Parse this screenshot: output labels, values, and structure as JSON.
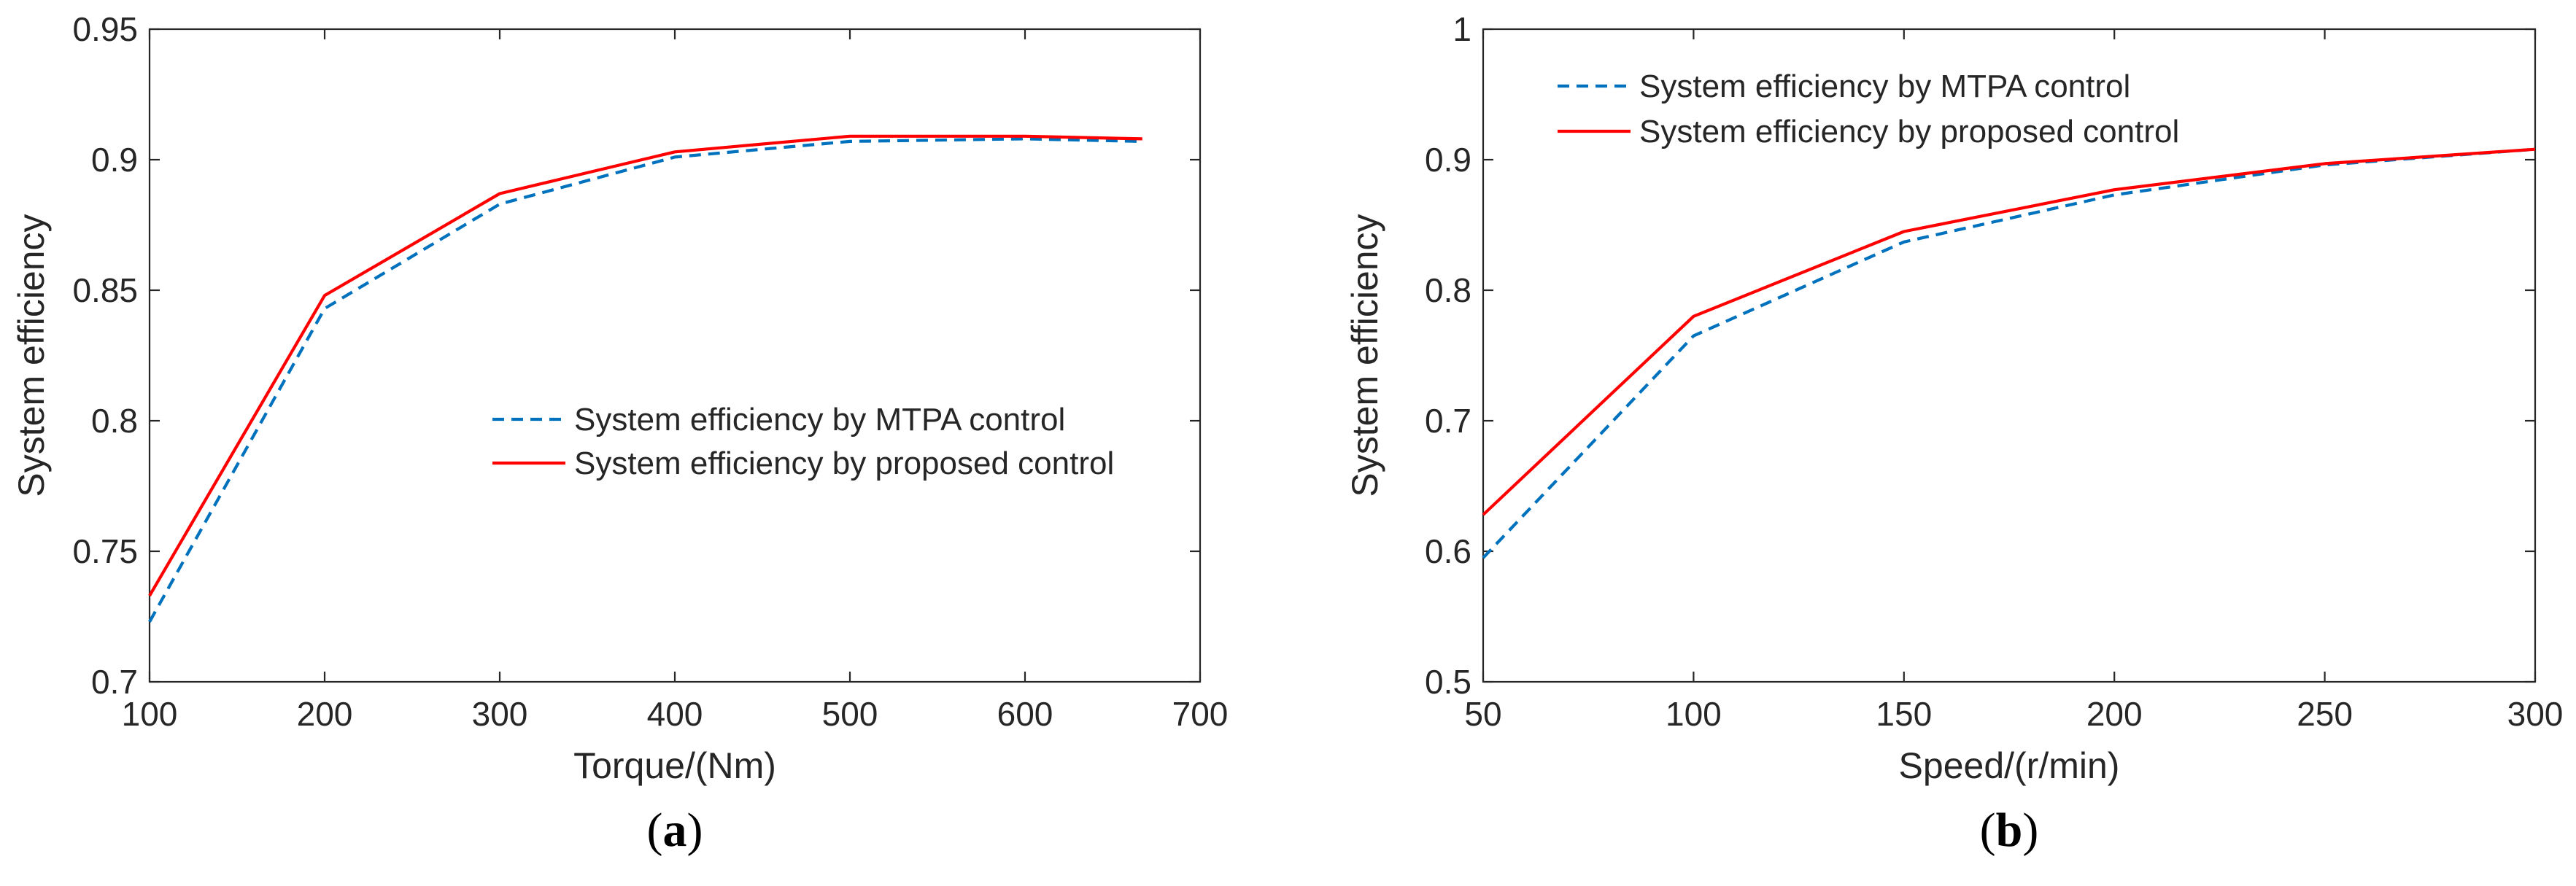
{
  "chart_data": [
    {
      "type": "line",
      "panel_label": "a",
      "xlabel": "Torque/(Nm)",
      "ylabel": "System efficiency",
      "xlim": [
        100,
        700
      ],
      "ylim": [
        0.7,
        0.95
      ],
      "xticks": [
        100,
        200,
        300,
        400,
        500,
        600,
        700
      ],
      "yticks": [
        0.7,
        0.75,
        0.8,
        0.85,
        0.9,
        0.95
      ],
      "xtick_labels": [
        "100",
        "200",
        "300",
        "400",
        "500",
        "600",
        "700"
      ],
      "ytick_labels": [
        "0.7",
        "0.75",
        "0.8",
        "0.85",
        "0.9",
        "0.95"
      ],
      "legend_position": "center-right",
      "series": [
        {
          "name": "System efficiency by MTPA control",
          "style": "dashed",
          "color": "#0072bd",
          "x": [
            100,
            200,
            300,
            400,
            500,
            600,
            667
          ],
          "y": [
            0.723,
            0.843,
            0.883,
            0.901,
            0.907,
            0.908,
            0.907
          ]
        },
        {
          "name": "System efficiency by proposed control",
          "style": "solid",
          "color": "#ff0000",
          "x": [
            100,
            200,
            300,
            400,
            500,
            600,
            667
          ],
          "y": [
            0.733,
            0.848,
            0.887,
            0.903,
            0.909,
            0.909,
            0.908
          ]
        }
      ]
    },
    {
      "type": "line",
      "panel_label": "b",
      "xlabel": "Speed/(r/min)",
      "ylabel": "System efficiency",
      "xlim": [
        50,
        300
      ],
      "ylim": [
        0.5,
        1.0
      ],
      "xticks": [
        50,
        100,
        150,
        200,
        250,
        300
      ],
      "yticks": [
        0.5,
        0.6,
        0.7,
        0.8,
        0.9,
        1.0
      ],
      "xtick_labels": [
        "50",
        "100",
        "150",
        "200",
        "250",
        "300"
      ],
      "ytick_labels": [
        "0.5",
        "0.6",
        "0.7",
        "0.8",
        "0.9",
        "1"
      ],
      "legend_position": "top-left",
      "series": [
        {
          "name": "System efficiency by MTPA control",
          "style": "dashed",
          "color": "#0072bd",
          "x": [
            50,
            100,
            150,
            200,
            250,
            300
          ],
          "y": [
            0.595,
            0.765,
            0.837,
            0.873,
            0.896,
            0.908
          ]
        },
        {
          "name": "System efficiency by proposed control",
          "style": "solid",
          "color": "#ff0000",
          "x": [
            50,
            100,
            150,
            200,
            250,
            300
          ],
          "y": [
            0.628,
            0.78,
            0.845,
            0.877,
            0.897,
            0.908
          ]
        }
      ]
    }
  ]
}
